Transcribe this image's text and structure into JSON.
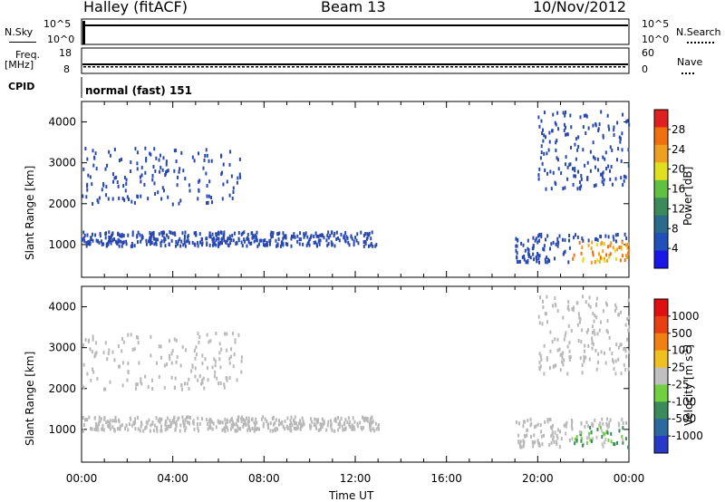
{
  "header": {
    "station": "Halley (fitACF)",
    "beam": "Beam 13",
    "date": "10/Nov/2012"
  },
  "top_panels": {
    "nsky_label": "N.Sky",
    "nsky_ticks": [
      "10^5",
      "10^0"
    ],
    "nsearch_label": "N.Search",
    "nsearch_ticks": [
      "10^5",
      "10^0"
    ],
    "freq_label": "Freq.",
    "freq_unit": "[MHz]",
    "freq_ticks": [
      "18",
      "8"
    ],
    "nave_label": "Nave",
    "nave_ticks": [
      "60",
      "0"
    ],
    "cpid_label": "CPID",
    "cpid_value": "normal (fast) 151"
  },
  "colors": {
    "power_scale": [
      "#1818e8",
      "#2050b8",
      "#2a6a8a",
      "#3a8a5a",
      "#60c040",
      "#e0e020",
      "#f0a020",
      "#f07010",
      "#e02020"
    ],
    "velocity_scale": [
      "#2838c8",
      "#2a6aa0",
      "#3a8a5a",
      "#70d040",
      "#c0c0c0",
      "#f0c020",
      "#f08010",
      "#e84010",
      "#e01010"
    ],
    "scatter_power": "#2848b0",
    "scatter_velocity": "#b8b8b8"
  },
  "chart_data": [
    {
      "type": "heatmap",
      "ylabel": "Slant Range [km]",
      "ylim": [
        200,
        4500
      ],
      "yticks": [
        "4000",
        "3000",
        "2000",
        "1000"
      ],
      "colorbar": {
        "label": "Power [dB]",
        "ticks": [
          "28",
          "24",
          "20",
          "16",
          "12",
          "8",
          "4"
        ],
        "range": [
          0,
          30
        ]
      },
      "echo_bands": [
        {
          "name": "",
          "hours": [
            0,
            13
          ],
          "range_km": [
            1000,
            1350
          ]
        },
        {
          "name": "",
          "hours": [
            19,
            24
          ],
          "range_km": [
            600,
            1300
          ]
        },
        {
          "name": "",
          "hours": [
            0,
            7
          ],
          "range_km": [
            2000,
            3400
          ]
        },
        {
          "name": "",
          "hours": [
            20,
            24
          ],
          "range_km": [
            2400,
            4300
          ]
        }
      ]
    },
    {
      "type": "heatmap",
      "ylabel": "Slant Range [km]",
      "ylim": [
        200,
        4500
      ],
      "yticks": [
        "4000",
        "3000",
        "2000",
        "1000"
      ],
      "xlabel": "Time UT",
      "xticks": [
        "00:00",
        "04:00",
        "08:00",
        "12:00",
        "16:00",
        "20:00",
        "00:00"
      ],
      "colorbar": {
        "label": "Velocity [m s",
        "label_sup": "-1",
        "label_end": "]",
        "ticks": [
          "1000",
          "500",
          "100",
          "25",
          "-25",
          "-100",
          "-500",
          "-1000"
        ]
      }
    }
  ]
}
